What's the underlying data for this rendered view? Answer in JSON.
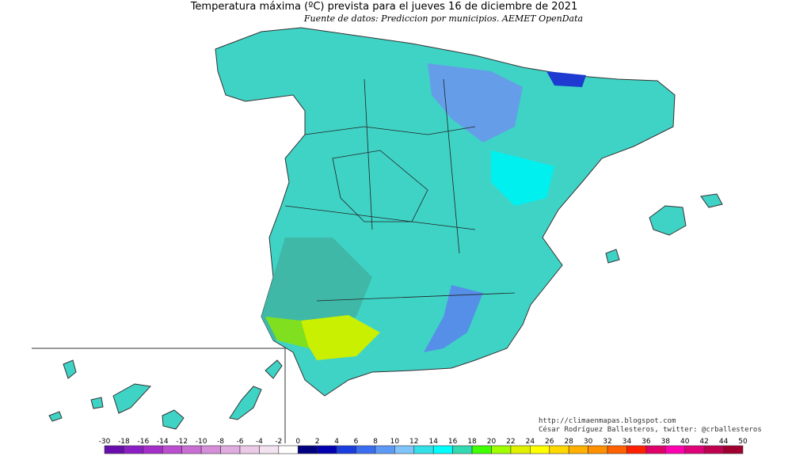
{
  "title": "Temperatura máxima (ºC) prevista para el jueves 16 de diciembre de 2021",
  "subtitle": "Fuente de datos: Prediccion por municipios. AEMET OpenData",
  "credits": [
    "http://climaenmapas.blogspot.com",
    "César Rodríguez Ballesteros, twitter: @crballesteros"
  ],
  "legend": {
    "ticks": [
      -30,
      -18,
      -16,
      -14,
      -12,
      -10,
      -8,
      -6,
      -4,
      -2,
      0,
      2,
      4,
      6,
      8,
      10,
      12,
      14,
      16,
      18,
      20,
      22,
      24,
      26,
      28,
      30,
      32,
      34,
      36,
      38,
      40,
      42,
      44,
      50
    ],
    "colors": [
      "#6a0dad",
      "#8b1ec4",
      "#a530c9",
      "#bb4fcf",
      "#c96fd3",
      "#d68ed9",
      "#e0acdf",
      "#ebc9e7",
      "#f3e3f1",
      "#ffffff",
      "#000080",
      "#0000b0",
      "#1a3de0",
      "#3a6ef0",
      "#5c9af5",
      "#80c4fb",
      "#33e0e8",
      "#00ffff",
      "#33d9b0",
      "#40ff00",
      "#a0ff00",
      "#e0f000",
      "#ffff00",
      "#ffd800",
      "#ffb000",
      "#ff9000",
      "#ff6000",
      "#ff2000",
      "#e0006a",
      "#ff00b0",
      "#e0007a",
      "#c00050",
      "#a00030"
    ]
  }
}
